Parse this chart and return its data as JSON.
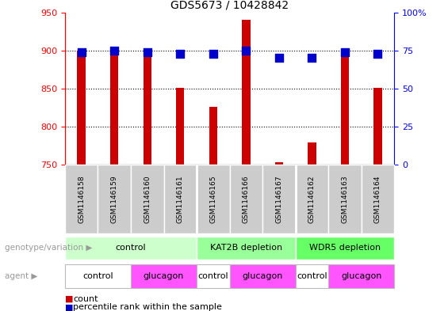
{
  "title": "GDS5673 / 10428842",
  "samples": [
    "GSM1146158",
    "GSM1146159",
    "GSM1146160",
    "GSM1146161",
    "GSM1146165",
    "GSM1146166",
    "GSM1146167",
    "GSM1146162",
    "GSM1146163",
    "GSM1146164"
  ],
  "counts": [
    900,
    901,
    893,
    851,
    826,
    940,
    753,
    779,
    901,
    851
  ],
  "percentiles": [
    74,
    75,
    74,
    73,
    73,
    75,
    70,
    70,
    74,
    73
  ],
  "ymin": 750,
  "ymax": 950,
  "y_ticks": [
    750,
    800,
    850,
    900,
    950
  ],
  "y2min": 0,
  "y2max": 100,
  "y2_ticks": [
    0,
    25,
    50,
    75,
    100
  ],
  "bar_color": "#cc0000",
  "square_color": "#0000cc",
  "genotype_groups": [
    {
      "label": "control",
      "start": 0,
      "end": 4,
      "color": "#ccffcc"
    },
    {
      "label": "KAT2B depletion",
      "start": 4,
      "end": 7,
      "color": "#99ff99"
    },
    {
      "label": "WDR5 depletion",
      "start": 7,
      "end": 10,
      "color": "#66ff66"
    }
  ],
  "agent_groups": [
    {
      "label": "control",
      "start": 0,
      "end": 2,
      "color": "#ffffff"
    },
    {
      "label": "glucagon",
      "start": 2,
      "end": 4,
      "color": "#ff55ff"
    },
    {
      "label": "control",
      "start": 4,
      "end": 5,
      "color": "#ffffff"
    },
    {
      "label": "glucagon",
      "start": 5,
      "end": 7,
      "color": "#ff55ff"
    },
    {
      "label": "control",
      "start": 7,
      "end": 8,
      "color": "#ffffff"
    },
    {
      "label": "glucagon",
      "start": 8,
      "end": 10,
      "color": "#ff55ff"
    }
  ],
  "legend_count_color": "#cc0000",
  "legend_percentile_color": "#0000cc",
  "genotype_row_label": "genotype/variation",
  "agent_row_label": "agent",
  "legend_count_label": "count",
  "legend_percentile_label": "percentile rank within the sample",
  "bar_width": 0.25
}
